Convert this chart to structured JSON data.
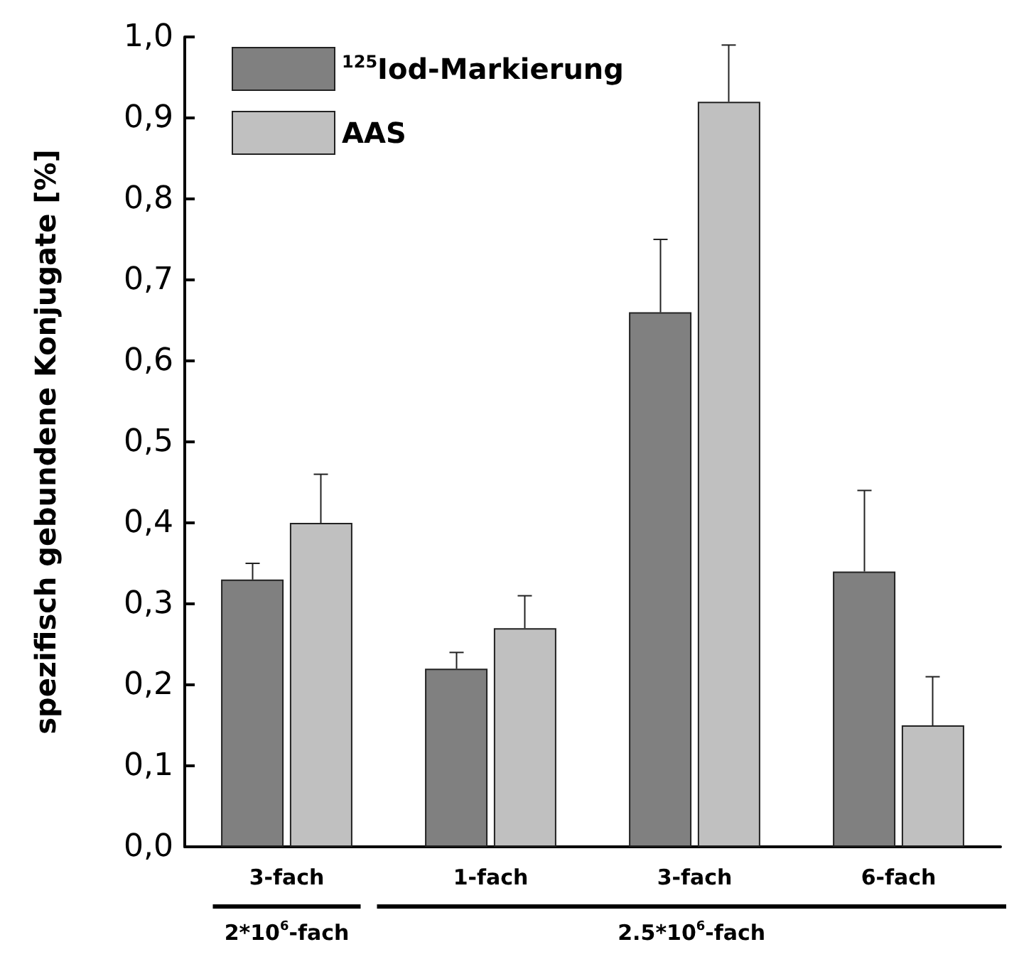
{
  "chart_data": {
    "type": "bar",
    "ylabel": "spezifisch gebundene Konjugate [%]",
    "categories": [
      "3-fach",
      "1-fach",
      "3-fach",
      "6-fach"
    ],
    "series": [
      {
        "name": "$^{125}$Iod-Markierung",
        "color": "#808080",
        "values": [
          0.33,
          0.22,
          0.66,
          0.34
        ],
        "errors": [
          [
            0.33,
            0.35
          ],
          [
            0.22,
            0.24
          ],
          [
            0.66,
            0.75
          ],
          [
            0.34,
            0.44
          ]
        ]
      },
      {
        "name": "AAS",
        "color": "#c0c0c0",
        "values": [
          0.4,
          0.27,
          0.92,
          0.15
        ],
        "errors": [
          [
            0.4,
            0.46
          ],
          [
            0.27,
            0.31
          ],
          [
            0.92,
            0.99
          ],
          [
            0.15,
            0.21
          ]
        ]
      }
    ],
    "ylim": [
      0,
      1
    ],
    "yticks": [
      {
        "value": 0,
        "label": "0,0"
      },
      {
        "value": 0.1,
        "label": "0,1"
      },
      {
        "value": 0.2,
        "label": "0,2"
      },
      {
        "value": 0.3,
        "label": "0,3"
      },
      {
        "value": 0.4,
        "label": "0,4"
      },
      {
        "value": 0.5,
        "label": "0,5"
      },
      {
        "value": 0.6,
        "label": "0,6"
      },
      {
        "value": 0.7,
        "label": "0,7"
      },
      {
        "value": 0.8,
        "label": "0,8"
      },
      {
        "value": 0.9,
        "label": "0,9"
      },
      {
        "value": 1,
        "label": "1,0"
      }
    ],
    "annotations": [
      "2*10$^{6}$-fach",
      "2.5*10$^{6}$-fach"
    ],
    "legend": "top left",
    "grid": false
  }
}
